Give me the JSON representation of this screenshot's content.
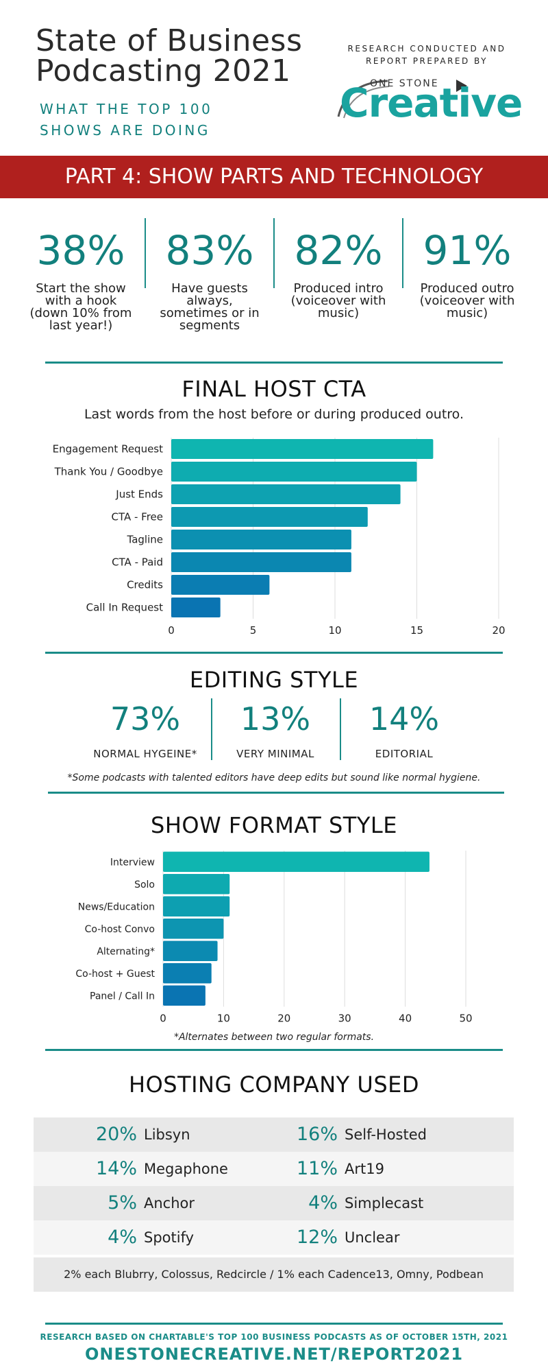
{
  "header": {
    "title_line1": "State of Business",
    "title_line2": "Podcasting 2021",
    "subtitle_line1": "WHAT THE TOP 100",
    "subtitle_line2": "SHOWS ARE DOING",
    "research_line1": "RESEARCH CONDUCTED AND",
    "research_line2": "REPORT PREPARED BY",
    "logo_small": "ONE STONE",
    "logo_big": "Creative"
  },
  "banner": {
    "text": "PART 4: SHOW PARTS AND TECHNOLOGY"
  },
  "stats": [
    {
      "value": "38%",
      "desc1": "Start the show",
      "desc2": "with a hook",
      "desc3": "(down 10% from",
      "desc4": "last year!)"
    },
    {
      "value": "83%",
      "desc1": "Have guests",
      "desc2": "always,",
      "desc3": "sometimes or in",
      "desc4": "segments"
    },
    {
      "value": "82%",
      "desc1": "Produced intro",
      "desc2": "(voiceover with",
      "desc3": "music)",
      "desc4": ""
    },
    {
      "value": "91%",
      "desc1": "Produced outro",
      "desc2": "(voiceover with",
      "desc3": "music)",
      "desc4": ""
    }
  ],
  "cta": {
    "title": "FINAL HOST CTA",
    "subtitle": "Last words from the host before or during produced outro."
  },
  "editing": {
    "title": "EDITING STYLE",
    "items": [
      {
        "value": "73%",
        "label": "NORMAL HYGEINE*"
      },
      {
        "value": "13%",
        "label": "VERY MINIMAL"
      },
      {
        "value": "14%",
        "label": "EDITORIAL"
      }
    ],
    "note": "*Some podcasts with talented editors have deep edits but sound like normal hygiene."
  },
  "format": {
    "title": "SHOW FORMAT STYLE",
    "note": "*Alternates between two regular formats."
  },
  "hosting": {
    "title": "HOSTING COMPANY USED",
    "rows": [
      {
        "pct1": "20%",
        "name1": "Libsyn",
        "pct2": "16%",
        "name2": "Self-Hosted"
      },
      {
        "pct1": "14%",
        "name1": "Megaphone",
        "pct2": "11%",
        "name2": "Art19"
      },
      {
        "pct1": "5%",
        "name1": "Anchor",
        "pct2": "4%",
        "name2": "Simplecast"
      },
      {
        "pct1": "4%",
        "name1": "Spotify",
        "pct2": "12%",
        "name2": "Unclear"
      }
    ],
    "footnote": "2% each Blubrry, Colossus, Redcircle  /  1% each Cadence13, Omny, Podbean"
  },
  "footer": {
    "small": "RESEARCH BASED ON CHARTABLE'S TOP 100 BUSINESS PODCASTS AS OF OCTOBER 15TH, 2021",
    "url": "ONESTONECREATIVE.NET/REPORT2021"
  },
  "colors": {
    "teal": "#12807d",
    "banner_red": "#b0201e",
    "bar_light": "#0fb5b0",
    "bar_dark": "#0a74b2"
  },
  "chart_data": [
    {
      "type": "bar",
      "orientation": "horizontal",
      "categories": [
        "Engagement Request",
        "Thank You / Goodbye",
        "Just Ends",
        "CTA - Free",
        "Tagline",
        "CTA - Paid",
        "Credits",
        "Call In Request"
      ],
      "values": [
        16,
        15,
        14,
        12,
        11,
        11,
        6,
        3
      ],
      "xlim": [
        0,
        20
      ],
      "xticks": [
        0,
        5,
        10,
        15,
        20
      ],
      "grid": true
    },
    {
      "type": "bar",
      "orientation": "horizontal",
      "categories": [
        "Interview",
        "Solo",
        "News/Education",
        "Co-host Convo",
        "Alternating*",
        "Co-host + Guest",
        "Panel / Call In"
      ],
      "values": [
        44,
        11,
        11,
        10,
        9,
        8,
        7
      ],
      "xlim": [
        0,
        50
      ],
      "xticks": [
        0,
        10,
        20,
        30,
        40,
        50
      ],
      "grid": true
    }
  ]
}
